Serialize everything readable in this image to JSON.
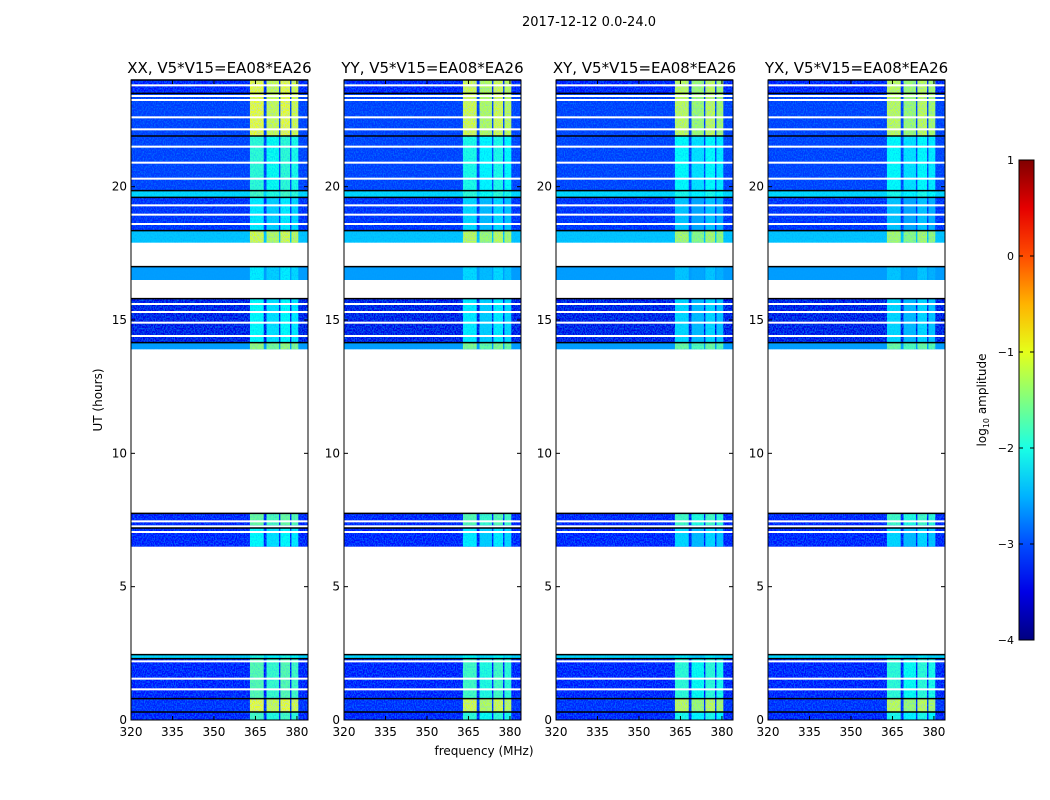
{
  "chart_data": {
    "type": "heatmap",
    "suptitle": "2017-12-12 0.0-24.0",
    "xlabel": "frequency (MHz)",
    "ylabel": "UT (hours)",
    "xlim": [
      320,
      384
    ],
    "ylim": [
      0,
      24
    ],
    "xticks": [
      320,
      335,
      350,
      365,
      380
    ],
    "yticks": [
      0,
      5,
      10,
      15,
      20
    ],
    "colorbar": {
      "label_prefix": "log",
      "label_sub": "10",
      "label_suffix": " amplitude",
      "range": [
        -4,
        1
      ],
      "ticks": [
        1,
        0,
        -1,
        -2,
        -3,
        -4
      ],
      "colormap": "jet"
    },
    "bright_band_mhz": [
      [
        363,
        368
      ],
      [
        369,
        373.5
      ],
      [
        374,
        377.5
      ],
      [
        378,
        380.5
      ]
    ],
    "panels": [
      {
        "title": "XX, V5*V15=EA08*EA26",
        "hi_offset": 0.0
      },
      {
        "title": "YY, V5*V15=EA08*EA26",
        "hi_offset": -0.1
      },
      {
        "title": "XY, V5*V15=EA08*EA26",
        "hi_offset": -0.2
      },
      {
        "title": "YX, V5*V15=EA08*EA26",
        "hi_offset": -0.2
      }
    ],
    "segments": [
      {
        "t0": 0.0,
        "t1": 0.3,
        "level": -3.3,
        "hi": -1.8
      },
      {
        "t0": 0.3,
        "t1": 0.8,
        "level": -3.2,
        "hi": -1.0
      },
      {
        "t0": 0.8,
        "t1": 2.3,
        "level": -3.3,
        "hi": -1.7
      },
      {
        "t0": 2.3,
        "t1": 2.45,
        "level": -2.3,
        "hi": -2.0
      },
      {
        "t0": 6.5,
        "t1": 7.2,
        "level": -3.3,
        "hi": -2.1
      },
      {
        "t0": 7.3,
        "t1": 7.75,
        "level": -3.3,
        "hi": -1.6
      },
      {
        "t0": 13.9,
        "t1": 14.15,
        "level": -2.6,
        "hi": -1.4
      },
      {
        "t0": 14.15,
        "t1": 15.8,
        "level": -3.5,
        "hi": -2.1
      },
      {
        "t0": 16.5,
        "t1": 17.0,
        "level": -2.6,
        "hi": -2.2
      },
      {
        "t0": 17.9,
        "t1": 18.35,
        "level": -2.4,
        "hi": -1.1
      },
      {
        "t0": 18.35,
        "t1": 19.6,
        "level": -3.2,
        "hi": -2.2
      },
      {
        "t0": 19.6,
        "t1": 19.85,
        "level": -2.3,
        "hi": -1.8
      },
      {
        "t0": 19.85,
        "t1": 21.9,
        "level": -3.1,
        "hi": -1.9
      },
      {
        "t0": 21.9,
        "t1": 23.5,
        "level": -3.1,
        "hi": -1.0
      },
      {
        "t0": 23.5,
        "t1": 24.0,
        "level": -3.3,
        "hi": -1.0
      }
    ],
    "gaps": [
      1.15,
      1.55,
      2.2,
      7.05,
      7.45,
      14.4,
      14.9,
      15.3,
      15.6,
      18.6,
      18.95,
      19.3,
      20.3,
      20.9,
      21.5,
      22.15,
      22.6,
      23.25,
      23.4,
      23.8
    ]
  }
}
